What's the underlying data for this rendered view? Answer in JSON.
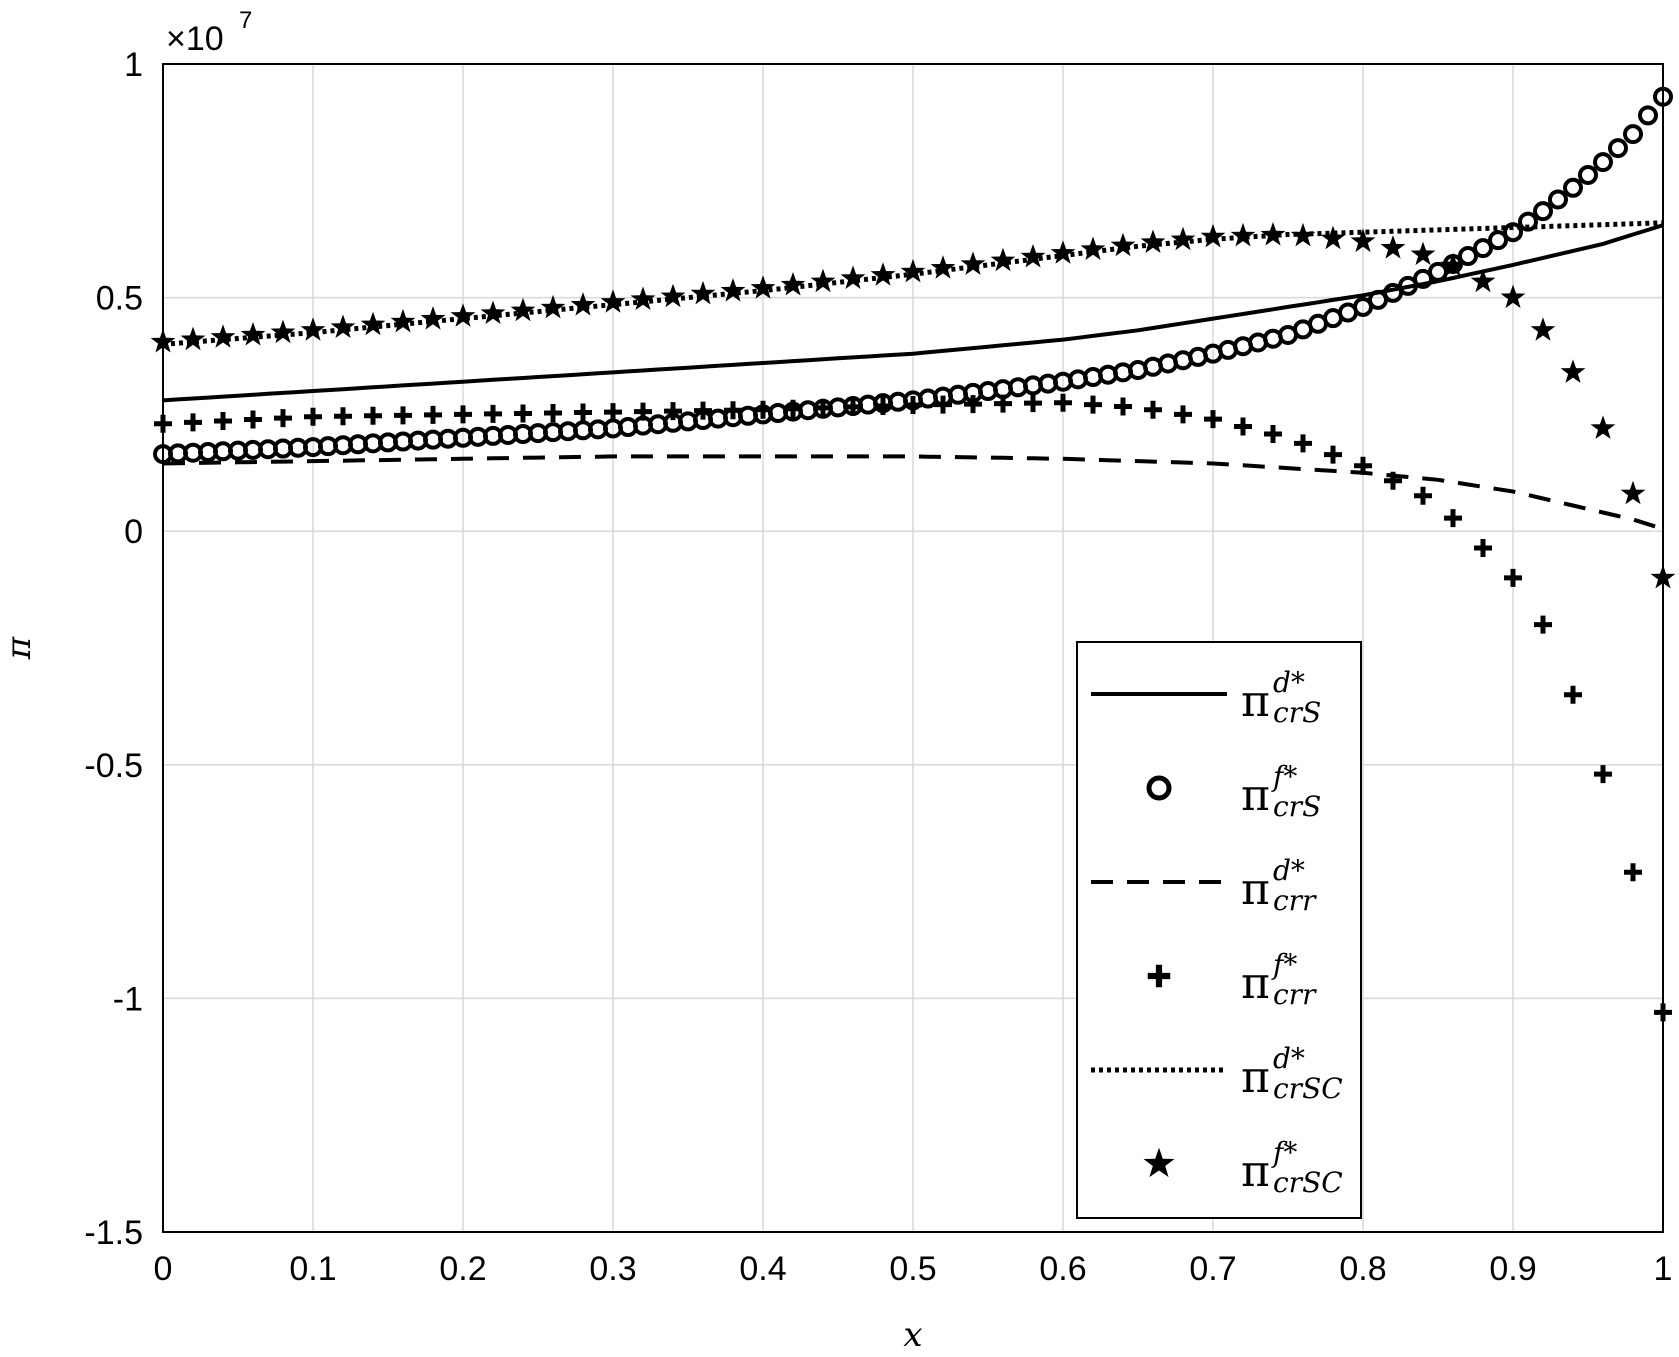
{
  "chart_data": {
    "type": "line",
    "title": "",
    "xlabel": "x",
    "ylabel": "π",
    "xlim": [
      0,
      1
    ],
    "ylim": [
      -1.5,
      1
    ],
    "y_exponent_label": "×10",
    "y_exponent_power": "7",
    "xticks": [
      "0",
      "0.1",
      "0.2",
      "0.3",
      "0.4",
      "0.5",
      "0.6",
      "0.7",
      "0.8",
      "0.9",
      "1"
    ],
    "yticks": [
      "1",
      "0.5",
      "0",
      "-0.5",
      "-1",
      "-1.5"
    ],
    "xtick_values": [
      0,
      0.1,
      0.2,
      0.3,
      0.4,
      0.5,
      0.6,
      0.7,
      0.8,
      0.9,
      1
    ],
    "ytick_values": [
      1,
      0.5,
      0,
      -0.5,
      -1,
      -1.5
    ],
    "grid": true,
    "legend_position": "bottom-right",
    "x": [
      0,
      0.1,
      0.2,
      0.3,
      0.4,
      0.5,
      0.6,
      0.65,
      0.7,
      0.75,
      0.8,
      0.85,
      0.9,
      0.92,
      0.94,
      0.96,
      0.98,
      1.0
    ],
    "series": [
      {
        "legend_main": "π",
        "legend_sup": "d*",
        "legend_sub": "crS",
        "style": "solid",
        "marker": "none",
        "values": [
          0.28,
          0.3,
          0.32,
          0.34,
          0.36,
          0.38,
          0.41,
          0.43,
          0.455,
          0.48,
          0.505,
          0.535,
          0.57,
          0.585,
          0.6,
          0.615,
          0.635,
          0.655
        ]
      },
      {
        "legend_main": "π",
        "legend_sup": "f*",
        "legend_sub": "crS",
        "style": "none",
        "marker": "circle",
        "values": [
          0.165,
          0.18,
          0.2,
          0.22,
          0.25,
          0.28,
          0.32,
          0.345,
          0.38,
          0.42,
          0.48,
          0.555,
          0.64,
          0.685,
          0.735,
          0.79,
          0.85,
          0.93
        ]
      },
      {
        "legend_main": "π",
        "legend_sup": "d*",
        "legend_sub": "crr",
        "style": "dashed",
        "marker": "none",
        "values": [
          0.145,
          0.15,
          0.155,
          0.16,
          0.16,
          0.16,
          0.155,
          0.15,
          0.145,
          0.135,
          0.125,
          0.11,
          0.085,
          0.07,
          0.055,
          0.04,
          0.025,
          0.005
        ]
      },
      {
        "legend_main": "π",
        "legend_sup": "f*",
        "legend_sub": "crr",
        "style": "none",
        "marker": "plus",
        "values": [
          0.23,
          0.245,
          0.25,
          0.255,
          0.26,
          0.27,
          0.275,
          0.265,
          0.24,
          0.2,
          0.14,
          0.06,
          -0.1,
          -0.2,
          -0.35,
          -0.52,
          -0.73,
          -1.03
        ]
      },
      {
        "legend_main": "π",
        "legend_sup": "d*",
        "legend_sub": "crSC",
        "style": "dotted",
        "marker": "none",
        "values": [
          0.4,
          0.425,
          0.455,
          0.485,
          0.515,
          0.55,
          0.59,
          0.61,
          0.625,
          0.635,
          0.64,
          0.645,
          0.65,
          0.652,
          0.654,
          0.656,
          0.658,
          0.66
        ]
      },
      {
        "legend_main": "π",
        "legend_sup": "f*",
        "legend_sub": "crSC",
        "style": "none",
        "marker": "star",
        "values": [
          0.405,
          0.43,
          0.46,
          0.49,
          0.52,
          0.555,
          0.595,
          0.615,
          0.63,
          0.635,
          0.62,
          0.585,
          0.5,
          0.43,
          0.34,
          0.22,
          0.08,
          -0.1
        ]
      }
    ]
  }
}
